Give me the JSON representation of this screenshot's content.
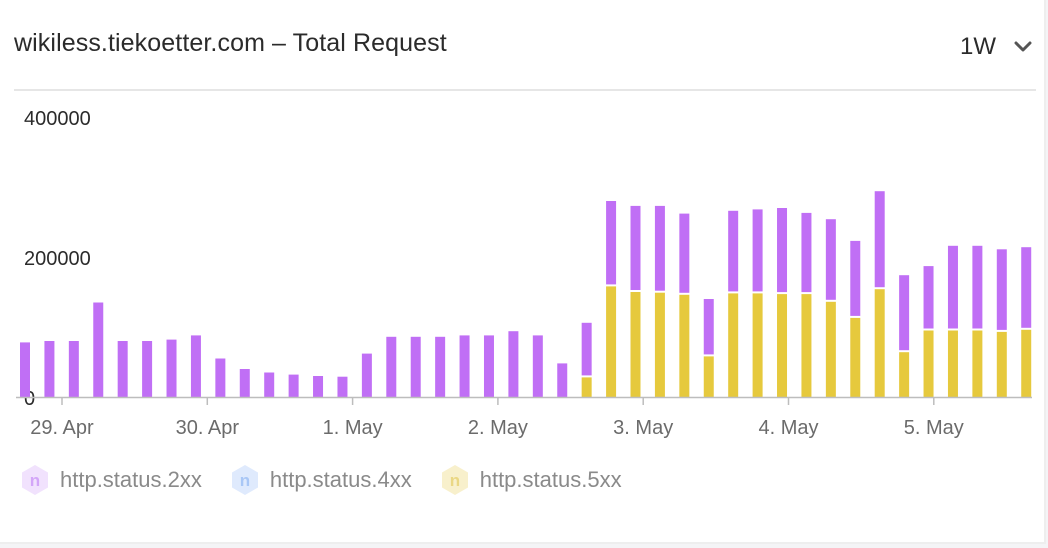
{
  "header": {
    "title": "wikiless.tiekoetter.com – Total Request",
    "range_label": "1W",
    "range_icon": "chevron-down-icon"
  },
  "legend": [
    {
      "label": "http.status.2xx",
      "badge": "n",
      "color": "#c06ff5",
      "badge_fill": "#f1e2fd",
      "badge_text": "#d3a6f8"
    },
    {
      "label": "http.status.4xx",
      "badge": "n",
      "color": "#5aa0f5",
      "badge_fill": "#dfeafd",
      "badge_text": "#a9c7f6"
    },
    {
      "label": "http.status.5xx",
      "badge": "n",
      "color": "#e6c93d",
      "badge_fill": "#f8f0cc",
      "badge_text": "#ead784"
    }
  ],
  "chart_data": {
    "type": "bar",
    "stacked": true,
    "ylim": [
      0,
      400000
    ],
    "y_ticks": [
      0,
      200000,
      400000
    ],
    "x_tick_labels": [
      "29. Apr",
      "30. Apr",
      "1. May",
      "2. May",
      "3. May",
      "4. May",
      "5. May"
    ],
    "series": [
      {
        "name": "http.status.2xx",
        "color": "#c06ff5",
        "values": [
          78000,
          80000,
          80000,
          135000,
          80000,
          80000,
          82000,
          88000,
          55000,
          40000,
          35000,
          32000,
          30000,
          29000,
          62000,
          86000,
          86000,
          86000,
          88000,
          88000,
          94000,
          88000,
          48000,
          78000,
          122000,
          123000,
          124000,
          116000,
          82000,
          118000,
          120000,
          123000,
          116000,
          118000,
          110000,
          140000,
          110000,
          92000,
          121000,
          121000,
          118000,
          118000
        ]
      },
      {
        "name": "http.status.4xx",
        "color": "#5aa0f5",
        "values": [
          0,
          0,
          0,
          0,
          0,
          0,
          0,
          0,
          0,
          0,
          0,
          0,
          0,
          0,
          0,
          0,
          0,
          0,
          0,
          0,
          0,
          0,
          0,
          0,
          0,
          0,
          0,
          0,
          0,
          0,
          0,
          0,
          0,
          0,
          0,
          0,
          0,
          0,
          0,
          0,
          0,
          0
        ]
      },
      {
        "name": "http.status.5xx",
        "color": "#e6c93d",
        "values": [
          0,
          0,
          0,
          0,
          0,
          0,
          0,
          0,
          0,
          0,
          0,
          0,
          0,
          0,
          0,
          0,
          0,
          0,
          0,
          0,
          0,
          0,
          0,
          28000,
          158000,
          150000,
          149000,
          146000,
          58000,
          148000,
          148000,
          147000,
          147000,
          136000,
          113000,
          154000,
          64000,
          95000,
          95000,
          95000,
          93000,
          96000
        ]
      }
    ]
  }
}
